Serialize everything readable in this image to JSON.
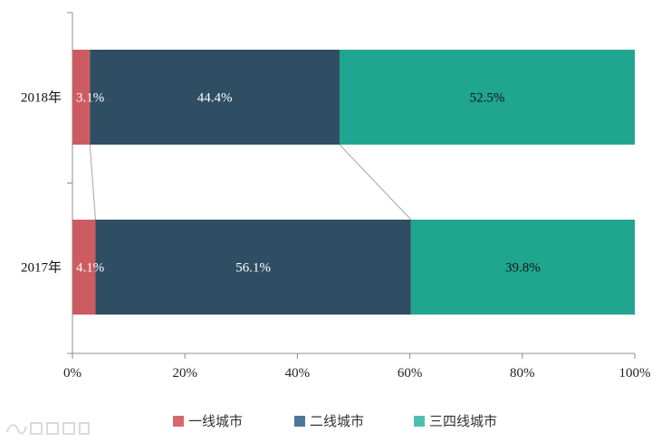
{
  "chart_data": {
    "type": "bar",
    "orientation": "horizontal",
    "stacked": "percent",
    "categories": [
      "2018年",
      "2017年"
    ],
    "series": [
      {
        "name": "一线城市",
        "values": [
          3.1,
          4.1
        ],
        "labels": [
          "3.1%",
          "4.1%"
        ],
        "color": "#cd5c62",
        "label_color": "#ffffff"
      },
      {
        "name": "二线城市",
        "values": [
          44.4,
          56.1
        ],
        "labels": [
          "44.4%",
          "56.1%"
        ],
        "color": "#2f4d63",
        "label_color": "#ffffff"
      },
      {
        "name": "三四线城市",
        "values": [
          52.5,
          39.8
        ],
        "labels": [
          "52.5%",
          "39.8%"
        ],
        "color": "#20a590",
        "label_color": "#111111"
      }
    ],
    "x_ticks": [
      "0%",
      "20%",
      "40%",
      "60%",
      "80%",
      "100%"
    ],
    "xlim": [
      0,
      100
    ],
    "series_lines": true,
    "grid": false,
    "legend_position": "bottom",
    "legend_colors": [
      "#d9686e",
      "#4b7895",
      "#4dbfae"
    ]
  }
}
